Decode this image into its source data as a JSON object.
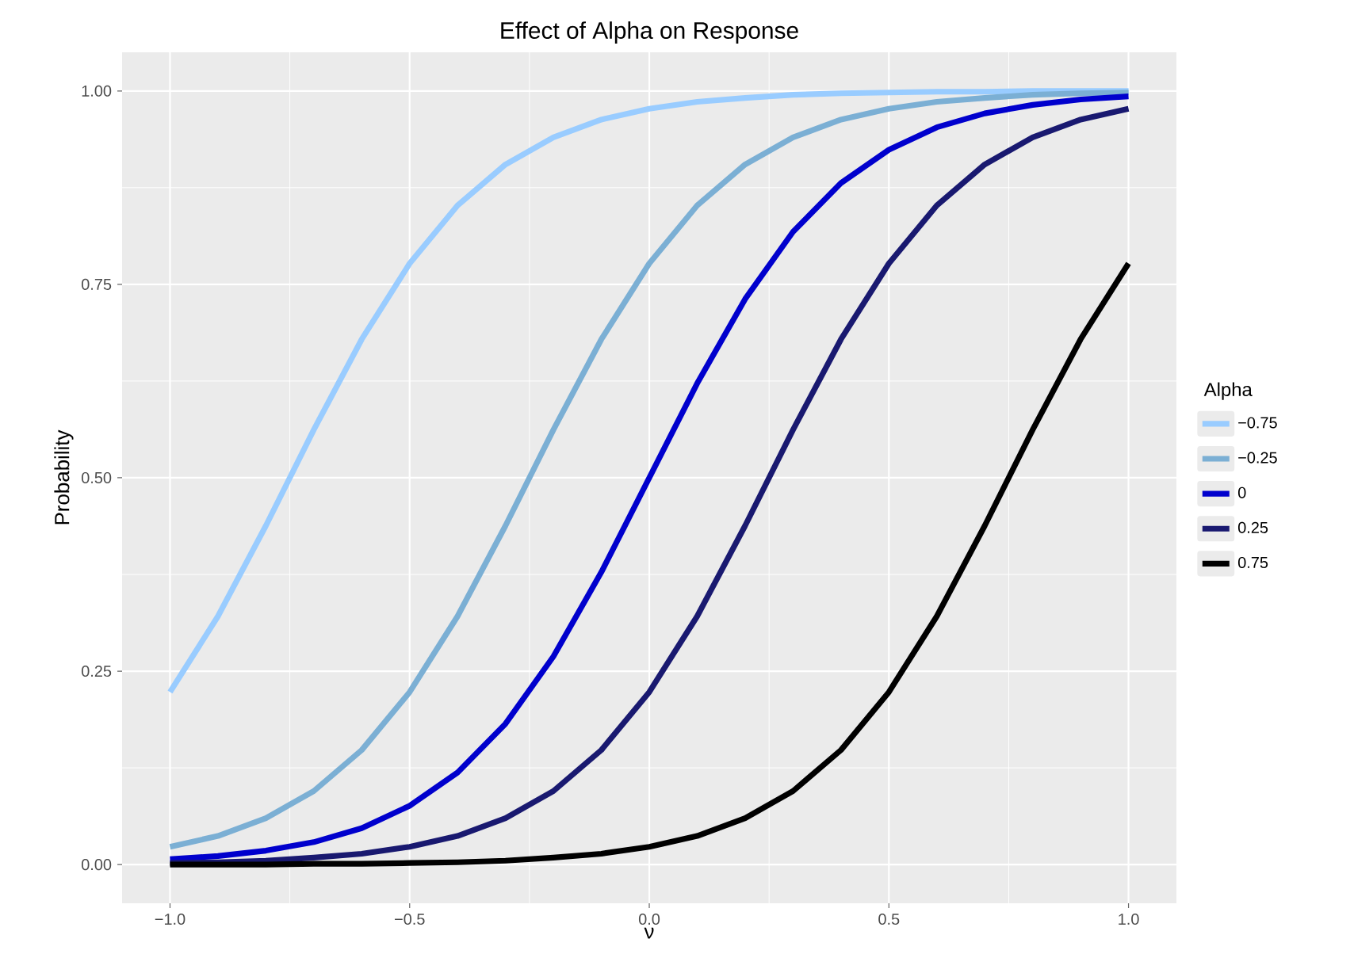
{
  "chart_data": {
    "type": "line",
    "title": "Effect of Alpha on Response",
    "xlabel": "ν",
    "ylabel": "Probability",
    "legend_title": "Alpha",
    "legend": "right",
    "grid": true,
    "line_style": "solid",
    "marker": "none",
    "x": [
      -1.0,
      -0.9,
      -0.8,
      -0.7,
      -0.6,
      -0.5,
      -0.4,
      -0.3,
      -0.2,
      -0.1,
      0.0,
      0.1,
      0.2,
      0.3,
      0.4,
      0.5,
      0.6,
      0.7,
      0.8,
      0.9,
      1.0
    ],
    "xlim": [
      -1.1,
      1.1
    ],
    "ylim": [
      -0.05,
      1.05
    ],
    "xticks": [
      {
        "value": -1.0,
        "label": "−1.0"
      },
      {
        "value": -0.5,
        "label": "−0.5"
      },
      {
        "value": 0,
        "label": "0.0"
      },
      {
        "value": 0.5,
        "label": "0.5"
      },
      {
        "value": 1.0,
        "label": "1.0"
      }
    ],
    "yticks": [
      {
        "value": 0,
        "label": "0.00"
      },
      {
        "value": 0.25,
        "label": "0.25"
      },
      {
        "value": 0.5,
        "label": "0.50"
      },
      {
        "value": 0.75,
        "label": "0.75"
      },
      {
        "value": 1.0,
        "label": "1.00"
      }
    ],
    "series": [
      {
        "name": "−0.75",
        "color": "#99ccff",
        "values": [
          0.223,
          0.321,
          0.438,
          0.562,
          0.679,
          0.777,
          0.852,
          0.905,
          0.94,
          0.963,
          0.977,
          0.986,
          0.991,
          0.995,
          0.997,
          0.998,
          0.999,
          0.999,
          1.0,
          1.0,
          1.0
        ]
      },
      {
        "name": "−0.25",
        "color": "#7bafd4",
        "values": [
          0.023,
          0.037,
          0.06,
          0.095,
          0.148,
          0.223,
          0.321,
          0.438,
          0.562,
          0.679,
          0.777,
          0.852,
          0.905,
          0.94,
          0.963,
          0.977,
          0.986,
          0.991,
          0.995,
          0.997,
          0.998
        ]
      },
      {
        "name": "0",
        "color": "#0000cd",
        "values": [
          0.007,
          0.011,
          0.018,
          0.029,
          0.047,
          0.076,
          0.119,
          0.182,
          0.269,
          0.378,
          0.5,
          0.622,
          0.731,
          0.818,
          0.881,
          0.924,
          0.953,
          0.971,
          0.982,
          0.989,
          0.993
        ]
      },
      {
        "name": "0.25",
        "color": "#191970",
        "values": [
          0.002,
          0.003,
          0.005,
          0.009,
          0.014,
          0.023,
          0.037,
          0.06,
          0.095,
          0.148,
          0.223,
          0.321,
          0.438,
          0.562,
          0.679,
          0.777,
          0.852,
          0.905,
          0.94,
          0.963,
          0.977
        ]
      },
      {
        "name": "0.75",
        "color": "#000000",
        "values": [
          0.0,
          0.0,
          0.0,
          0.001,
          0.001,
          0.002,
          0.003,
          0.005,
          0.009,
          0.014,
          0.023,
          0.037,
          0.06,
          0.095,
          0.148,
          0.223,
          0.321,
          0.438,
          0.562,
          0.679,
          0.777
        ]
      }
    ]
  }
}
